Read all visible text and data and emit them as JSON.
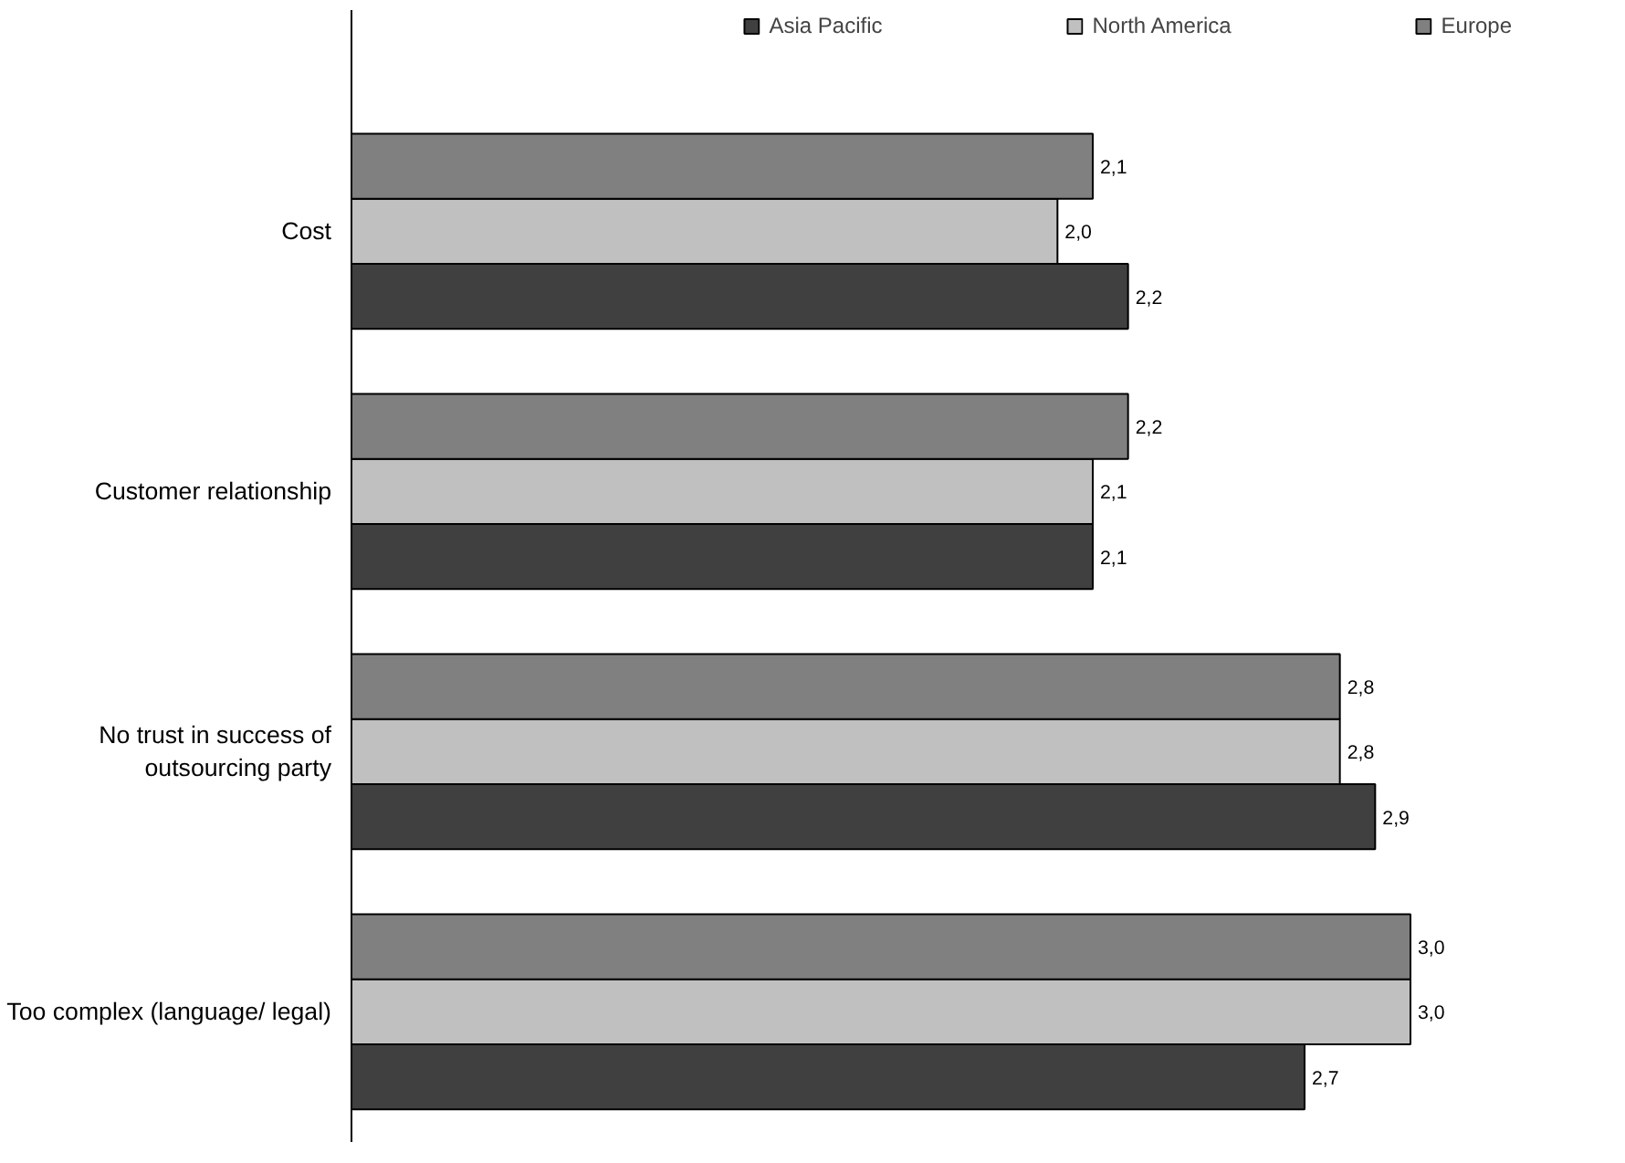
{
  "chart_data": {
    "type": "bar",
    "orientation": "horizontal",
    "categories": [
      "Cost",
      "Customer relationship",
      "No trust in success of outsourcing party",
      "Too complex (language/ legal)"
    ],
    "series": [
      {
        "name": "Asia Pacific",
        "color": "#404040",
        "values": [
          2.2,
          2.1,
          2.9,
          2.7
        ],
        "value_labels": [
          "2,2",
          "2,1",
          "2,9",
          "2,7"
        ]
      },
      {
        "name": "North America",
        "color": "#c0c0c0",
        "values": [
          2.0,
          2.1,
          2.8,
          3.0
        ],
        "value_labels": [
          "2,0",
          "2,1",
          "2,8",
          "3,0"
        ]
      },
      {
        "name": "Europe",
        "color": "#808080",
        "values": [
          2.1,
          2.2,
          2.8,
          3.0
        ],
        "value_labels": [
          "2,1",
          "2,2",
          "2,8",
          "3,0"
        ]
      }
    ],
    "legend": "top",
    "grid": false
  }
}
